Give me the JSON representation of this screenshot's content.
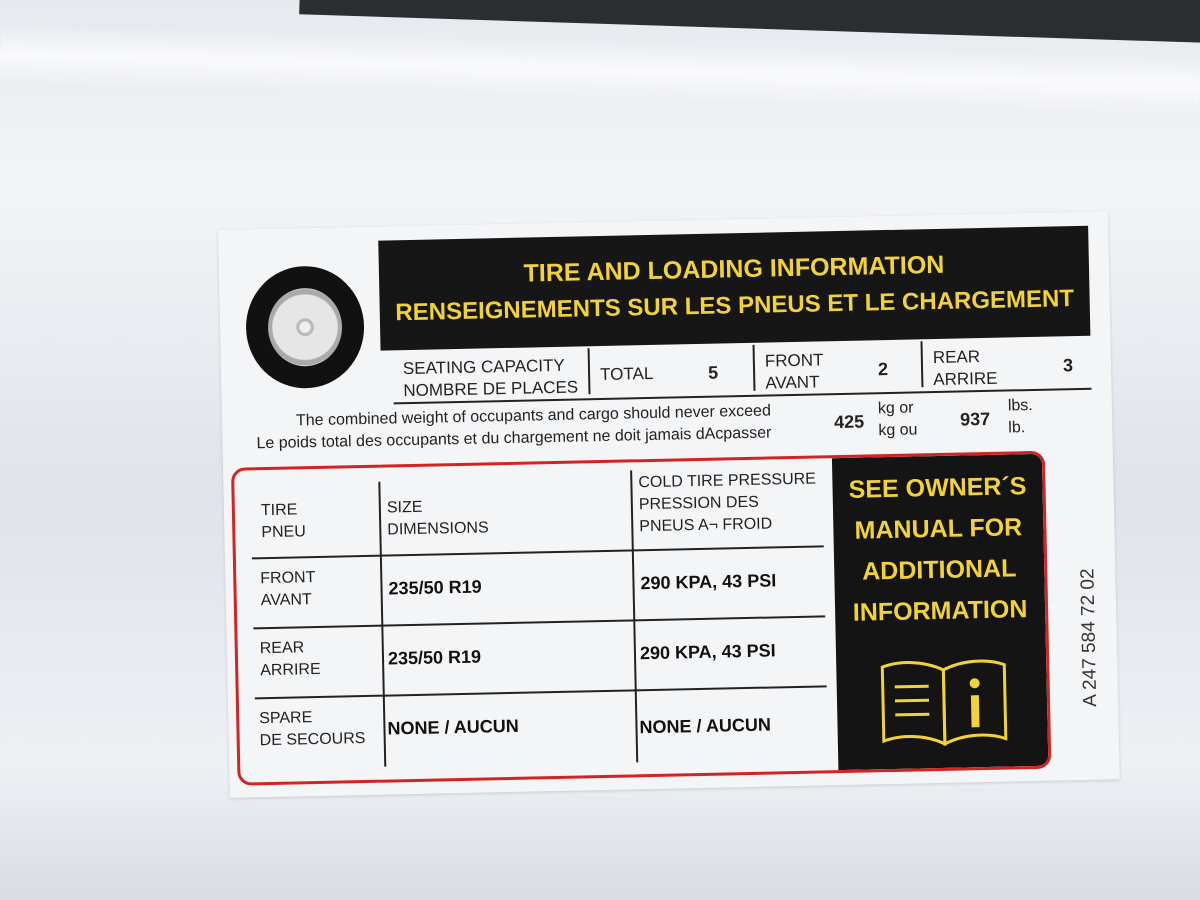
{
  "label": {
    "title_en": "TIRE AND LOADING INFORMATION",
    "title_fr": "RENSEIGNEMENTS SUR LES PNEUS ET LE CHARGEMENT",
    "seating": {
      "label_en": "SEATING CAPACITY",
      "label_fr": "NOMBRE DE PLACES",
      "total_label": "TOTAL",
      "total": "5",
      "front_label_en": "FRONT",
      "front_label_fr": "AVANT",
      "front": "2",
      "rear_label_en": "REAR",
      "rear_label_fr": "ARRIRE",
      "rear": "3"
    },
    "weight": {
      "text_en": "The combined weight of occupants and cargo should never exceed",
      "text_fr": "Le poids total des occupants et du chargement ne doit jamais dAcpasser",
      "kg": "425",
      "kg_unit_en": "kg or",
      "kg_unit_fr": "kg ou",
      "lbs": "937",
      "lbs_unit_en": "lbs.",
      "lbs_unit_fr": "lb."
    },
    "table": {
      "headers": {
        "tire": [
          "TIRE",
          "PNEU"
        ],
        "size": [
          "SIZE",
          "DIMENSIONS"
        ],
        "pressure": [
          "COLD TIRE PRESSURE",
          "PRESSION DES",
          "PNEUS A¬ FROID"
        ]
      },
      "rows": [
        {
          "tire": [
            "FRONT",
            "AVANT"
          ],
          "size": "235/50 R19",
          "pressure": "290 KPA, 43 PSI"
        },
        {
          "tire": [
            "REAR",
            "ARRIRE"
          ],
          "size": "235/50 R19",
          "pressure": "290 KPA, 43 PSI"
        },
        {
          "tire": [
            "SPARE",
            "DE SECOURS"
          ],
          "size": "NONE / AUCUN",
          "pressure": "NONE / AUCUN"
        }
      ]
    },
    "info_box": [
      "SEE OWNER´S",
      "MANUAL FOR",
      "ADDITIONAL",
      "INFORMATION"
    ],
    "part_number": "A 247 584 72 02",
    "colors": {
      "title_bg": "#161616",
      "title_text": "#f2d23a",
      "border": "#d32424"
    }
  }
}
